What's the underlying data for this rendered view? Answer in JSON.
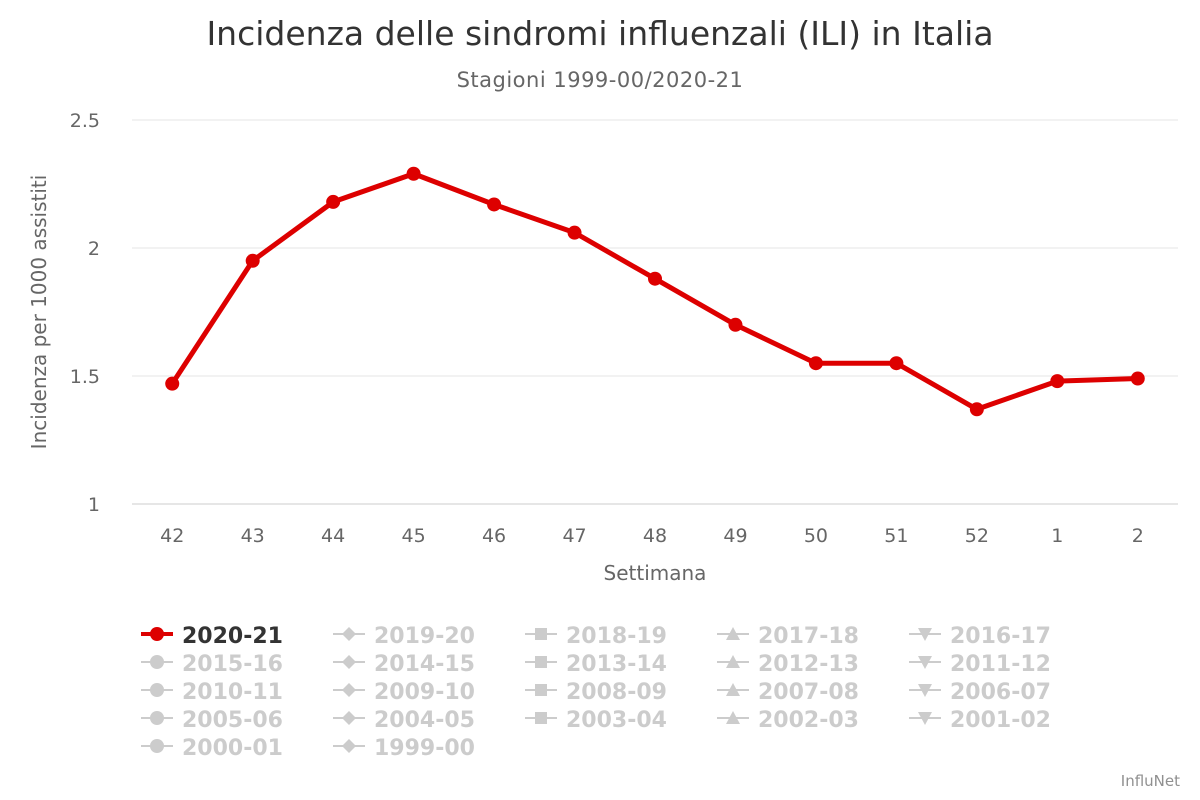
{
  "title": "Incidenza delle sindromi influenzali (ILI) in Italia",
  "subtitle": "Stagioni 1999-00/2020-21",
  "credits": "InfluNet",
  "colors": {
    "active": "#DD0000",
    "hidden": "#CCCCCC",
    "grid": "#e6e6e6",
    "text": "#666666"
  },
  "chart_data": {
    "type": "line",
    "title": "Incidenza delle sindromi influenzali (ILI) in Italia",
    "subtitle": "Stagioni 1999-00/2020-21",
    "xlabel": "Settimana",
    "ylabel": "Incidenza per 1000 assistiti",
    "categories": [
      "42",
      "43",
      "44",
      "45",
      "46",
      "47",
      "48",
      "49",
      "50",
      "51",
      "52",
      "1",
      "2"
    ],
    "ylim": [
      1,
      2.5
    ],
    "yticks": [
      "1",
      "1.5",
      "2",
      "2.5"
    ],
    "grid": true,
    "legend_position": "bottom",
    "series": [
      {
        "name": "2020-21",
        "visible": true,
        "marker": "circle",
        "values": [
          1.47,
          1.95,
          2.18,
          2.29,
          2.17,
          2.06,
          1.88,
          1.7,
          1.55,
          1.55,
          1.37,
          1.48,
          1.49
        ]
      }
    ],
    "legend": [
      {
        "name": "2020-21",
        "marker": "circle",
        "visible": true
      },
      {
        "name": "2019-20",
        "marker": "diamond",
        "visible": false
      },
      {
        "name": "2018-19",
        "marker": "square",
        "visible": false
      },
      {
        "name": "2017-18",
        "marker": "triangle",
        "visible": false
      },
      {
        "name": "2016-17",
        "marker": "triangle-down",
        "visible": false
      },
      {
        "name": "2015-16",
        "marker": "circle",
        "visible": false
      },
      {
        "name": "2014-15",
        "marker": "diamond",
        "visible": false
      },
      {
        "name": "2013-14",
        "marker": "square",
        "visible": false
      },
      {
        "name": "2012-13",
        "marker": "triangle",
        "visible": false
      },
      {
        "name": "2011-12",
        "marker": "triangle-down",
        "visible": false
      },
      {
        "name": "2010-11",
        "marker": "circle",
        "visible": false
      },
      {
        "name": "2009-10",
        "marker": "diamond",
        "visible": false
      },
      {
        "name": "2008-09",
        "marker": "square",
        "visible": false
      },
      {
        "name": "2007-08",
        "marker": "triangle",
        "visible": false
      },
      {
        "name": "2006-07",
        "marker": "triangle-down",
        "visible": false
      },
      {
        "name": "2005-06",
        "marker": "circle",
        "visible": false
      },
      {
        "name": "2004-05",
        "marker": "diamond",
        "visible": false
      },
      {
        "name": "2003-04",
        "marker": "square",
        "visible": false
      },
      {
        "name": "2002-03",
        "marker": "triangle",
        "visible": false
      },
      {
        "name": "2001-02",
        "marker": "triangle-down",
        "visible": false
      },
      {
        "name": "2000-01",
        "marker": "circle",
        "visible": false
      },
      {
        "name": "1999-00",
        "marker": "diamond",
        "visible": false
      }
    ]
  }
}
